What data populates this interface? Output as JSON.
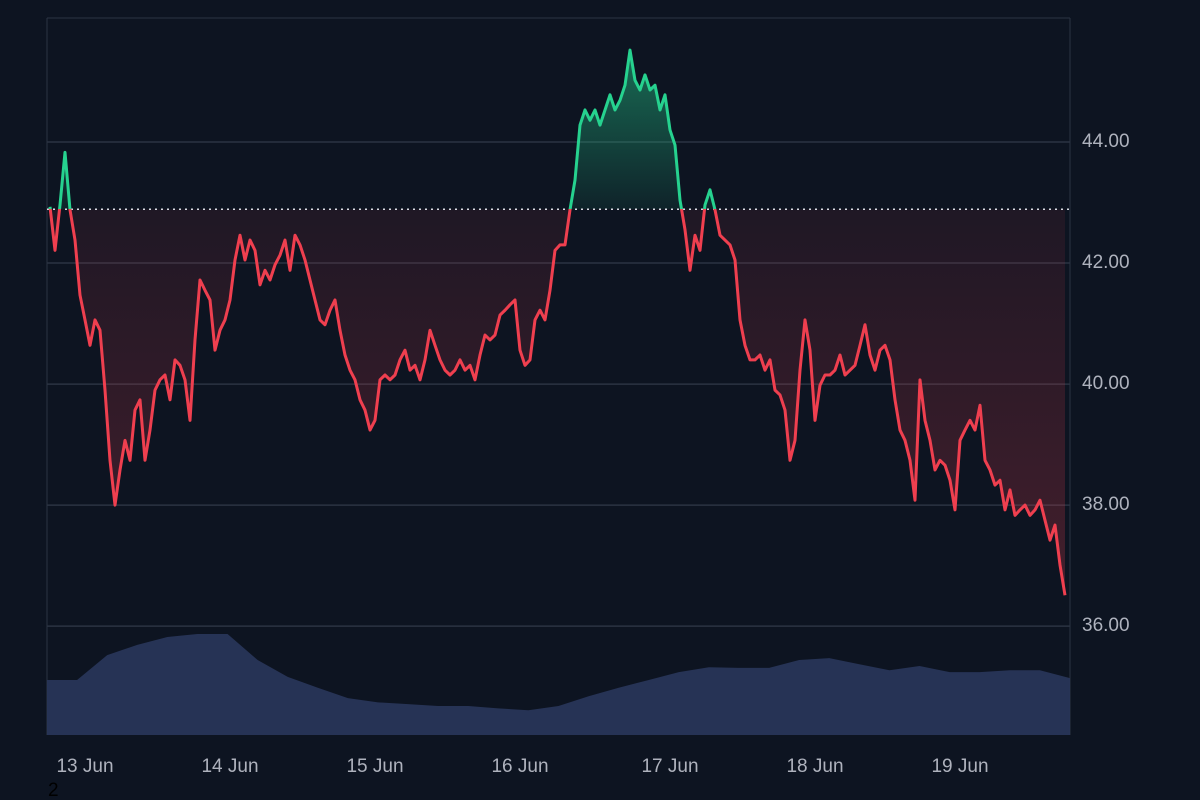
{
  "chart_data": {
    "type": "baseline",
    "baseline": 42.89,
    "up_color": "#26d28f",
    "down_color": "#ef3f4f",
    "categories": [
      null,
      null,
      null,
      null,
      null,
      null,
      null,
      "13 Jun",
      null,
      null,
      null,
      null,
      null,
      null,
      null,
      null,
      null,
      null,
      null,
      null,
      null,
      null,
      null,
      null,
      null,
      null,
      null,
      null,
      null,
      null,
      null,
      null,
      null,
      null,
      null,
      null,
      "14 Jun",
      null,
      null,
      null,
      null,
      null,
      null,
      null,
      null,
      null,
      null,
      null,
      null,
      null,
      null,
      null,
      null,
      null,
      null,
      null,
      null,
      null,
      null,
      null,
      null,
      null,
      null,
      null,
      null,
      "15 Jun",
      null,
      null,
      null,
      null,
      null,
      null,
      null,
      null,
      null,
      null,
      null,
      null,
      null,
      null,
      null,
      null,
      null,
      null,
      null,
      null,
      null,
      null,
      null,
      null,
      null,
      null,
      null,
      null,
      "16 Jun",
      null,
      null,
      null,
      null,
      null,
      null,
      null,
      null,
      null,
      null,
      null,
      null,
      null,
      null,
      null,
      null,
      null,
      null,
      null,
      null,
      null,
      null,
      null,
      null,
      null,
      null,
      null,
      null,
      null,
      "17 Jun",
      null,
      null,
      null,
      null,
      null,
      null,
      null,
      null,
      null,
      null,
      null,
      null,
      null,
      null,
      null,
      null,
      null,
      null,
      null,
      null,
      null,
      null,
      null,
      null,
      null,
      null,
      null,
      null,
      "18 Jun",
      null,
      null,
      null,
      null,
      null,
      null,
      null,
      null,
      null,
      null,
      null,
      null,
      null,
      null,
      null,
      null,
      null,
      null,
      null,
      null,
      null,
      null,
      null,
      null,
      null,
      null,
      null,
      null,
      "19 Jun",
      null,
      null,
      null,
      null,
      null,
      null,
      null,
      null,
      null,
      null,
      null,
      null,
      null,
      null,
      null,
      null,
      null,
      null,
      null,
      null,
      null
    ],
    "values": [
      42.93,
      42.21,
      42.96,
      43.83,
      42.88,
      42.38,
      41.47,
      41.06,
      40.64,
      41.06,
      40.89,
      39.9,
      38.74,
      38.0,
      38.58,
      39.07,
      38.74,
      39.57,
      39.74,
      38.74,
      39.24,
      39.9,
      40.07,
      40.15,
      39.74,
      40.4,
      40.31,
      40.07,
      39.4,
      40.73,
      41.72,
      41.55,
      41.39,
      40.56,
      40.89,
      41.06,
      41.39,
      42.05,
      42.46,
      42.05,
      42.38,
      42.21,
      41.64,
      41.88,
      41.72,
      41.97,
      42.13,
      42.38,
      41.88,
      42.46,
      42.3,
      42.05,
      41.72,
      41.39,
      41.06,
      40.98,
      41.22,
      41.39,
      40.89,
      40.48,
      40.23,
      40.07,
      39.74,
      39.57,
      39.24,
      39.4,
      40.07,
      40.15,
      40.07,
      40.15,
      40.4,
      40.56,
      40.23,
      40.31,
      40.07,
      40.4,
      40.89,
      40.64,
      40.4,
      40.23,
      40.15,
      40.23,
      40.4,
      40.23,
      40.31,
      40.07,
      40.48,
      40.81,
      40.73,
      40.81,
      41.14,
      41.22,
      41.31,
      41.39,
      40.56,
      40.31,
      40.4,
      41.06,
      41.22,
      41.06,
      41.55,
      42.21,
      42.3,
      42.3,
      42.88,
      43.37,
      44.28,
      44.53,
      44.36,
      44.53,
      44.28,
      44.53,
      44.78,
      44.53,
      44.69,
      44.94,
      45.52,
      45.02,
      44.86,
      45.11,
      44.86,
      44.94,
      44.53,
      44.78,
      44.2,
      43.95,
      43.04,
      42.55,
      41.88,
      42.46,
      42.21,
      42.96,
      43.21,
      42.88,
      42.46,
      42.38,
      42.3,
      42.05,
      41.06,
      40.64,
      40.4,
      40.4,
      40.48,
      40.23,
      40.4,
      39.9,
      39.82,
      39.57,
      38.74,
      39.07,
      40.23,
      41.06,
      40.56,
      39.4,
      39.98,
      40.15,
      40.15,
      40.23,
      40.48,
      40.15,
      40.23,
      40.31,
      40.64,
      40.98,
      40.48,
      40.23,
      40.56,
      40.64,
      40.4,
      39.74,
      39.24,
      39.07,
      38.74,
      38.08,
      40.07,
      39.4,
      39.07,
      38.58,
      38.74,
      38.66,
      38.41,
      37.92,
      39.07,
      39.24,
      39.4,
      39.24,
      39.65,
      38.74,
      38.58,
      38.33,
      38.41,
      37.92,
      38.25,
      37.83,
      37.92,
      38.0,
      37.83,
      37.92,
      38.08,
      37.75,
      37.42,
      37.67,
      37.01,
      36.51
    ],
    "volume": {
      "color": "#283558",
      "values": [
        35.11,
        35.11,
        35.52,
        35.69,
        35.82,
        35.87,
        35.87,
        35.44,
        35.16,
        34.98,
        34.81,
        34.74,
        34.71,
        34.68,
        34.68,
        34.64,
        34.61,
        34.68,
        34.84,
        34.98,
        35.11,
        35.24,
        35.32,
        35.31,
        35.31,
        35.44,
        35.47,
        35.37,
        35.27,
        35.34,
        35.24,
        35.24,
        35.27,
        35.27,
        35.14
      ]
    },
    "ylim": [
      34.2,
      46.05
    ],
    "yticks": [
      {
        "value": 36,
        "label": "36.00"
      },
      {
        "value": 38,
        "label": "38.00"
      },
      {
        "value": 40,
        "label": "40.00"
      },
      {
        "value": 42,
        "label": "42.00"
      },
      {
        "value": 44,
        "label": "44.00"
      }
    ],
    "grid": true,
    "annotation": "2"
  }
}
